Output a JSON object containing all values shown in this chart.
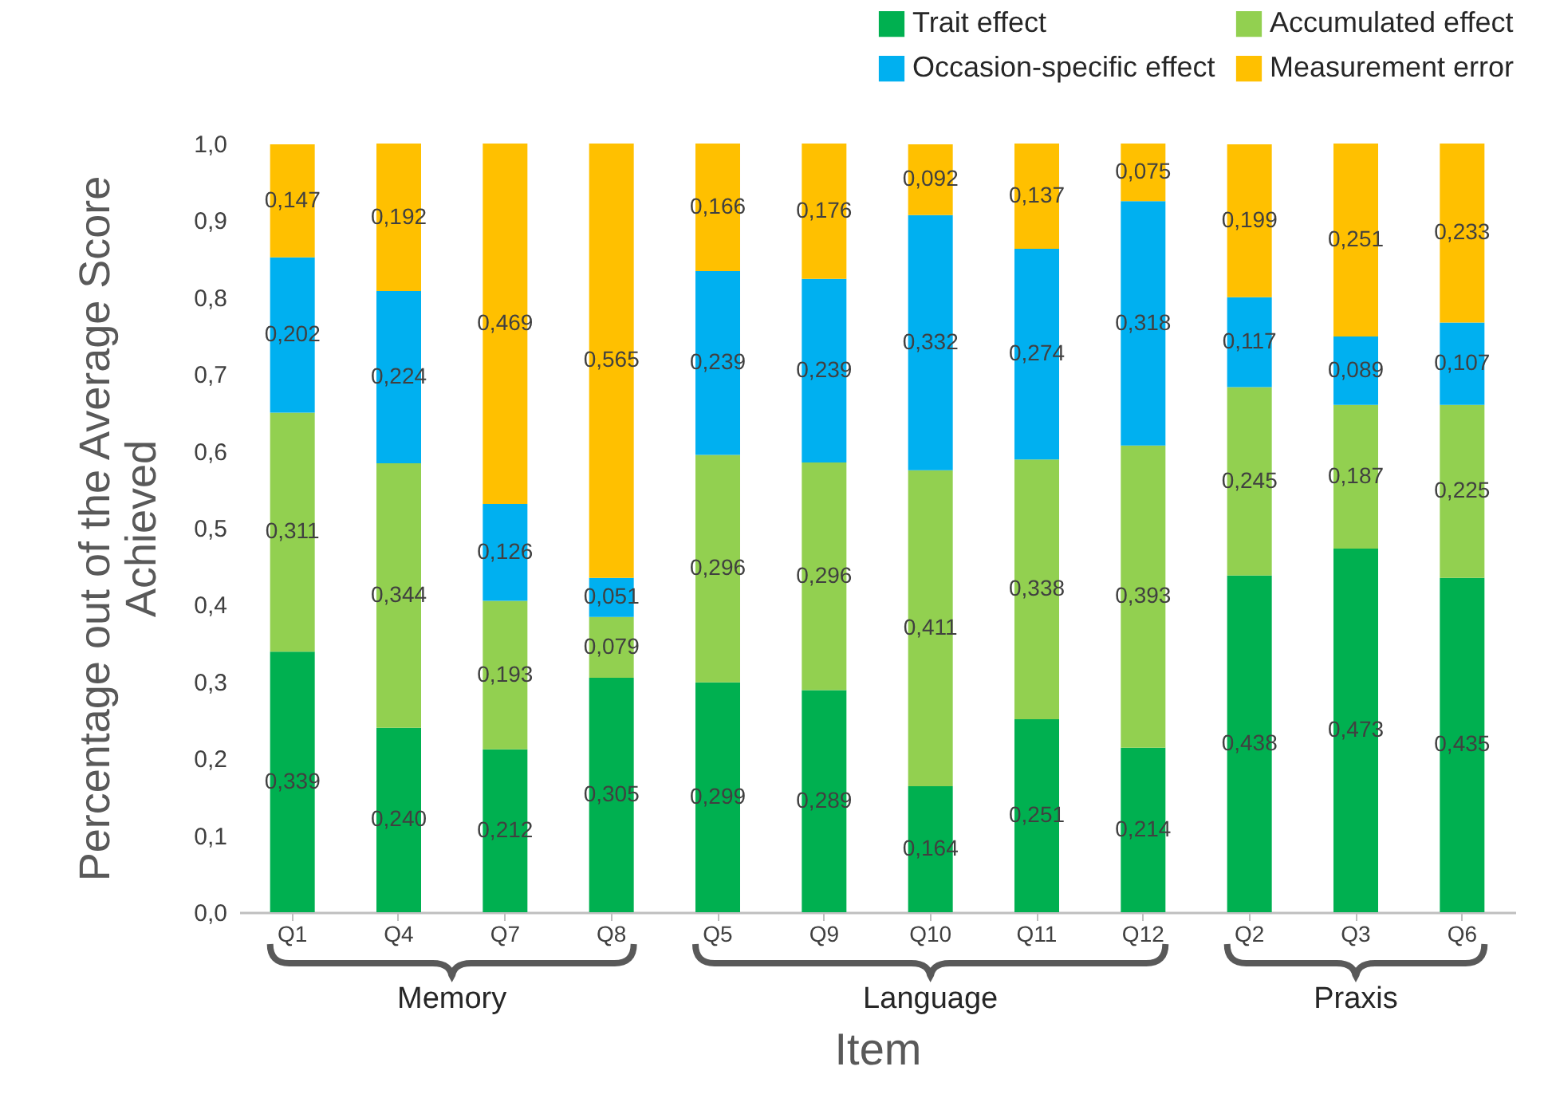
{
  "chart_data": {
    "type": "bar",
    "stacked": true,
    "xlabel": "Item",
    "ylabel": "Percentage out of the Average Score Achieved",
    "legend": "top right",
    "categories": [
      "Q1",
      "Q4",
      "Q7",
      "Q8",
      "Q5",
      "Q9",
      "Q10",
      "Q11",
      "Q12",
      "Q2",
      "Q3",
      "Q6"
    ],
    "ylim": [
      0,
      1
    ],
    "yticks": [
      {
        "value": 0,
        "label": "0,0"
      },
      {
        "value": 0.1,
        "label": "0,1"
      },
      {
        "value": 0.2,
        "label": "0,2"
      },
      {
        "value": 0.3,
        "label": "0,3"
      },
      {
        "value": 0.4,
        "label": "0,4"
      },
      {
        "value": 0.5,
        "label": "0,5"
      },
      {
        "value": 0.6,
        "label": "0,6"
      },
      {
        "value": 0.7,
        "label": "0,7"
      },
      {
        "value": 0.8,
        "label": "0,8"
      },
      {
        "value": 0.9,
        "label": "0,9"
      },
      {
        "value": 1,
        "label": "1,0"
      }
    ],
    "series": [
      {
        "name": "Trait effect",
        "color": "#00b050",
        "values": [
          0.339,
          0.24,
          0.212,
          0.305,
          0.299,
          0.289,
          0.164,
          0.251,
          0.214,
          0.438,
          0.473,
          0.435
        ],
        "value_labels": [
          "0,339",
          "0,240",
          "0,212",
          "0,305",
          "0,299",
          "0,289",
          "0,164",
          "0,251",
          "0,214",
          "0,438",
          "0,473",
          "0,435"
        ]
      },
      {
        "name": "Accumulated effect",
        "color": "#92d050",
        "values": [
          0.311,
          0.344,
          0.193,
          0.079,
          0.296,
          0.296,
          0.411,
          0.338,
          0.393,
          0.245,
          0.187,
          0.225
        ],
        "value_labels": [
          "0,311",
          "0,344",
          "0,193",
          "0,079",
          "0,296",
          "0,296",
          "0,411",
          "0,338",
          "0,393",
          "0,245",
          "0,187",
          "0,225"
        ]
      },
      {
        "name": "Occasion-specific effect",
        "color": "#00b0f0",
        "values": [
          0.202,
          0.224,
          0.126,
          0.051,
          0.239,
          0.239,
          0.332,
          0.274,
          0.318,
          0.117,
          0.089,
          0.107
        ],
        "value_labels": [
          "0,202",
          "0,224",
          "0,126",
          "0,051",
          "0,239",
          "0,239",
          "0,332",
          "0,274",
          "0,318",
          "0,117",
          "0,089",
          "0,107"
        ]
      },
      {
        "name": "Measurement error",
        "color": "#ffc000",
        "values": [
          0.147,
          0.192,
          0.469,
          0.565,
          0.166,
          0.176,
          0.092,
          0.137,
          0.075,
          0.199,
          0.251,
          0.233
        ],
        "value_labels": [
          "0,147",
          "0,192",
          "0,469",
          "0,565",
          "0,166",
          "0,176",
          "0,092",
          "0,137",
          "0,075",
          "0,199",
          "0,251",
          "0,233"
        ]
      }
    ],
    "annotations": [
      "Memory",
      "Language",
      "Praxis"
    ]
  }
}
